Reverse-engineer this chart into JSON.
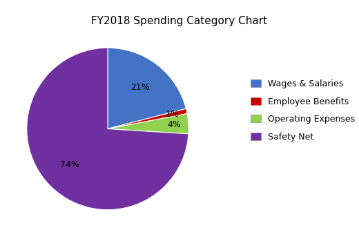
{
  "title": "FY2018 Spending Category Chart",
  "labels": [
    "Wages & Salaries",
    "Employee Benefits",
    "Operating Expenses",
    "Safety Net"
  ],
  "values": [
    21,
    1,
    4,
    74
  ],
  "colors": [
    "#4472C4",
    "#CC0000",
    "#92D050",
    "#7030A0"
  ],
  "pct_labels": [
    "21%",
    "1%",
    "4%",
    "74%"
  ],
  "title_fontsize": 11,
  "label_fontsize": 9,
  "legend_fontsize": 9,
  "background_color": "#ffffff"
}
